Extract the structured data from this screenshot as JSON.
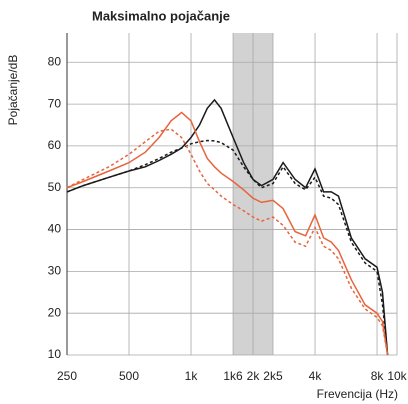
{
  "chart_data": {
    "type": "line",
    "title": "Maksimalno pojačanje",
    "x_label": "Frevencija (Hz)",
    "y_label": "Pojačanje/dB",
    "log_x": true,
    "grid": true,
    "shaded_band": [
      1600,
      2500
    ],
    "band_color": "#d2d2d2",
    "xlim": [
      250,
      10000
    ],
    "ylim": [
      10,
      87
    ],
    "xticks": [
      250,
      500,
      {
        "value": 1000,
        "label": "1k"
      },
      {
        "value": 1600,
        "label": "1k6"
      },
      {
        "value": 2000,
        "label": "2k"
      },
      {
        "value": 2500,
        "label": "2k5"
      },
      {
        "value": 4000,
        "label": "4k"
      },
      {
        "value": 8000,
        "label": "8k"
      },
      {
        "value": 10000,
        "label": "10k"
      }
    ],
    "yticks": [
      10,
      20,
      30,
      40,
      50,
      60,
      70,
      80
    ],
    "x": [
      250,
      300,
      400,
      500,
      600,
      700,
      800,
      900,
      1000,
      1100,
      1200,
      1300,
      1400,
      1600,
      1800,
      2000,
      2200,
      2500,
      2800,
      3200,
      3600,
      4000,
      4400,
      4800,
      5200,
      6000,
      7000,
      8000,
      8500,
      9000
    ],
    "series": [
      {
        "color": "#1a1a1a",
        "dash": false,
        "values": [
          49,
          50.5,
          52.5,
          54,
          55,
          56.5,
          58,
          59.5,
          62,
          65,
          69,
          71,
          69,
          62,
          56,
          52,
          50.5,
          52,
          56,
          52,
          50,
          54.5,
          49,
          49,
          48,
          38,
          33,
          31,
          25,
          10
        ]
      },
      {
        "color": "#1a1a1a",
        "dash": true,
        "values": [
          49,
          50.5,
          52.5,
          54,
          55.5,
          57,
          58.5,
          59.5,
          60.5,
          61,
          61.3,
          61.2,
          60.8,
          59,
          55,
          52,
          50,
          51,
          55,
          51,
          49.5,
          52.5,
          48,
          47.5,
          46,
          37,
          32,
          30,
          22,
          10
        ]
      },
      {
        "color": "#e8643c",
        "dash": false,
        "values": [
          50,
          51.5,
          54,
          56,
          58.5,
          62,
          66,
          68,
          66,
          61,
          57,
          55,
          53.5,
          51.5,
          49.5,
          47.5,
          46.5,
          47,
          45,
          39.5,
          38.5,
          43.5,
          38,
          37,
          35,
          28,
          22,
          20,
          18,
          10
        ]
      },
      {
        "color": "#e8643c",
        "dash": true,
        "values": [
          50,
          52,
          55,
          58,
          61,
          63.5,
          64,
          62,
          58,
          54,
          51,
          49.5,
          48,
          46,
          44.5,
          43,
          42,
          43,
          41,
          37,
          36,
          40.5,
          36,
          35,
          33,
          26,
          21,
          19,
          17,
          10
        ]
      }
    ]
  }
}
